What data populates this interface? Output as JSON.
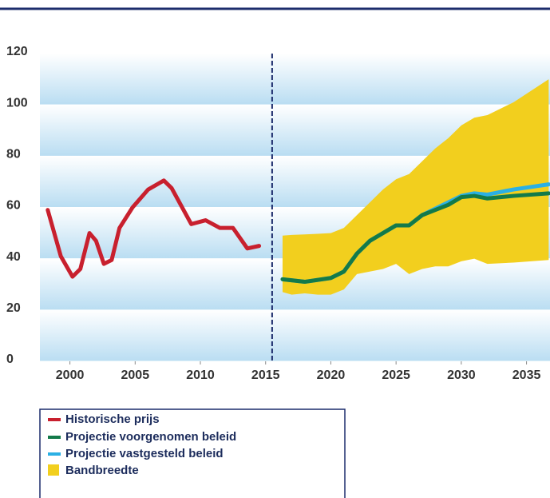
{
  "chart_data": {
    "type": "line",
    "xlim": [
      1997.7,
      2036.8
    ],
    "ylim": [
      0,
      120
    ],
    "xticks": [
      2000,
      2005,
      2010,
      2015,
      2020,
      2025,
      2030,
      2035
    ],
    "yticks": [
      0,
      20,
      40,
      60,
      80,
      100,
      120
    ],
    "vline": 2015.5,
    "series": [
      {
        "name": "Historische prijs",
        "color": "#c8202e",
        "x": [
          1998.3,
          1999.3,
          2000.2,
          2000.8,
          2001.5,
          2002,
          2002.6,
          2003.2,
          2003.8,
          2004.8,
          2006,
          2007.2,
          2007.8,
          2009.3,
          2010.4,
          2011.5,
          2012.5,
          2013.6,
          2014.5
        ],
        "values": [
          59,
          41,
          33,
          36,
          50,
          47,
          38,
          39.5,
          52,
          60,
          67,
          70.5,
          67.5,
          53.5,
          55,
          52,
          52,
          44,
          45
        ]
      },
      {
        "name": "Projectie vastgesteld beleid",
        "color": "#2bb0e4",
        "x": [
          2016.3,
          2018,
          2020,
          2021,
          2022,
          2023,
          2024,
          2025,
          2026,
          2027,
          2028,
          2029,
          2030,
          2031,
          2032,
          2034,
          2036.7
        ],
        "values": [
          32,
          31,
          32.5,
          35,
          42,
          47,
          50,
          53,
          53,
          57,
          59.5,
          62,
          64.5,
          65.5,
          65,
          67,
          69
        ]
      },
      {
        "name": "Projectie voorgenomen beleid",
        "color": "#137a4a",
        "x": [
          2016.3,
          2018,
          2020,
          2021,
          2022,
          2023,
          2024,
          2025,
          2026,
          2027,
          2028,
          2029,
          2030,
          2031,
          2032,
          2034,
          2036.7
        ],
        "values": [
          32,
          31,
          32.5,
          35,
          42,
          47,
          50,
          53,
          53,
          57,
          59,
          61,
          64,
          64.5,
          63.5,
          64.5,
          65.5
        ]
      }
    ],
    "band": {
      "name": "Bandbreedte",
      "color": "#f2cf1e",
      "x": [
        2016.3,
        2017,
        2018,
        2019,
        2020,
        2021,
        2022,
        2024,
        2025,
        2026,
        2027,
        2028,
        2029,
        2030,
        2031,
        2032,
        2034,
        2036.7
      ],
      "lower": [
        27,
        26,
        26.5,
        26,
        26,
        28,
        34,
        36,
        38,
        34,
        36,
        37,
        37,
        39,
        40,
        38,
        38.5,
        39.5
      ],
      "upper": [
        49,
        49.3,
        49.5,
        49.7,
        50,
        52,
        57,
        67,
        71,
        73,
        78,
        83,
        87,
        92,
        95,
        96,
        101,
        110
      ]
    },
    "legend_order": [
      0,
      2,
      1
    ]
  }
}
